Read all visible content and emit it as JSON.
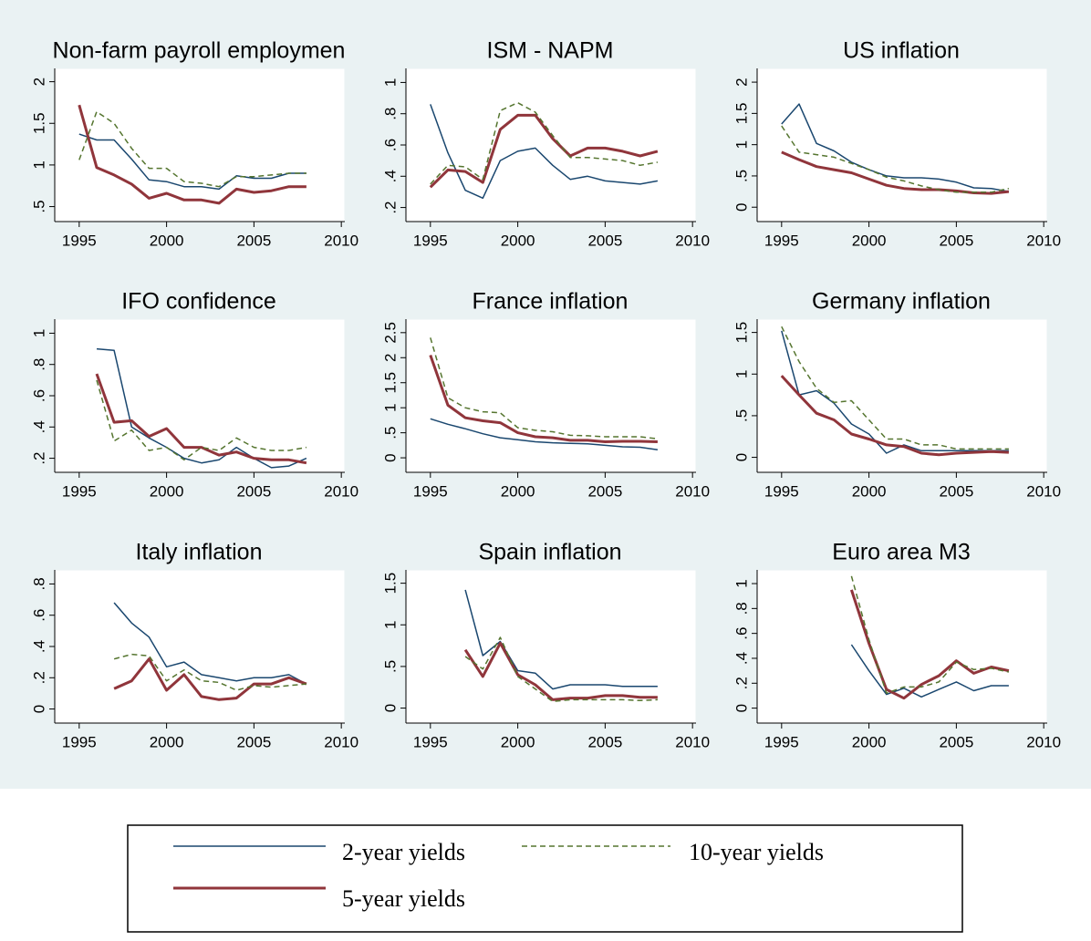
{
  "chart_data": [
    {
      "type": "line",
      "title": "Non-farm payroll employmen",
      "x": [
        1995,
        1996,
        1997,
        1998,
        1999,
        2000,
        2001,
        2002,
        2003,
        2004,
        2005,
        2006,
        2007,
        2008
      ],
      "xlim": [
        1993.6,
        2010.2
      ],
      "xticks": [
        1995,
        2000,
        2005,
        2010
      ],
      "ylim": [
        0.32,
        2.16
      ],
      "yticks": [
        {
          "value": 0.5,
          "label": ".5"
        },
        1,
        1.5,
        2
      ],
      "series": [
        {
          "name": "2-year yields",
          "color": "#1a476f",
          "values": [
            1.37,
            1.3,
            1.3,
            1.07,
            0.82,
            0.8,
            0.74,
            0.74,
            0.71,
            0.87,
            0.84,
            0.84,
            0.9,
            0.9
          ]
        },
        {
          "name": "5-year yields",
          "color": "#90353b",
          "values": [
            1.72,
            0.97,
            0.88,
            0.77,
            0.6,
            0.66,
            0.58,
            0.58,
            0.54,
            0.71,
            0.67,
            0.69,
            0.74,
            0.74
          ]
        },
        {
          "name": "10-year yields",
          "color": "#55752f",
          "values": [
            1.06,
            1.64,
            1.5,
            1.2,
            0.96,
            0.96,
            0.8,
            0.78,
            0.74,
            0.86,
            0.86,
            0.88,
            0.9,
            0.9
          ]
        }
      ]
    },
    {
      "type": "line",
      "title": "ISM - NAPM",
      "x": [
        1995,
        1996,
        1997,
        1998,
        1999,
        2000,
        2001,
        2002,
        2003,
        2004,
        2005,
        2006,
        2007,
        2008
      ],
      "xlim": [
        1993.6,
        2010.2
      ],
      "xticks": [
        1995,
        2000,
        2005,
        2010
      ],
      "ylim": [
        0.11,
        1.09
      ],
      "yticks": [
        {
          "value": 0.2,
          "label": ".2"
        },
        {
          "value": 0.4,
          "label": ".4"
        },
        {
          "value": 0.6,
          "label": ".6"
        },
        {
          "value": 0.8,
          "label": ".8"
        },
        1
      ],
      "series": [
        {
          "color": "#1a476f",
          "values": [
            0.86,
            0.55,
            0.31,
            0.26,
            0.5,
            0.56,
            0.58,
            0.47,
            0.38,
            0.4,
            0.37,
            0.36,
            0.35,
            0.37
          ]
        },
        {
          "color": "#90353b",
          "values": [
            0.33,
            0.44,
            0.43,
            0.36,
            0.7,
            0.79,
            0.79,
            0.64,
            0.53,
            0.58,
            0.58,
            0.56,
            0.53,
            0.56
          ]
        },
        {
          "color": "#55752f",
          "values": [
            0.35,
            0.47,
            0.46,
            0.38,
            0.82,
            0.87,
            0.81,
            0.66,
            0.52,
            0.52,
            0.51,
            0.5,
            0.47,
            0.49
          ]
        }
      ]
    },
    {
      "type": "line",
      "title": "US inflation",
      "x": [
        1995,
        1996,
        1997,
        1998,
        1999,
        2000,
        2001,
        2002,
        2003,
        2004,
        2005,
        2006,
        2007,
        2008
      ],
      "xlim": [
        1993.6,
        2010.2
      ],
      "xticks": [
        1995,
        2000,
        2005,
        2010
      ],
      "ylim": [
        -0.23,
        2.22
      ],
      "yticks": [
        0,
        {
          "value": 0.5,
          "label": ".5"
        },
        1,
        1.5,
        2
      ],
      "series": [
        {
          "color": "#1a476f",
          "values": [
            1.33,
            1.65,
            1.02,
            0.9,
            0.72,
            0.6,
            0.5,
            0.47,
            0.47,
            0.45,
            0.4,
            0.31,
            0.3,
            0.25
          ]
        },
        {
          "color": "#90353b",
          "values": [
            0.88,
            0.76,
            0.65,
            0.6,
            0.55,
            0.45,
            0.35,
            0.3,
            0.28,
            0.28,
            0.26,
            0.23,
            0.22,
            0.25
          ]
        },
        {
          "color": "#55752f",
          "values": [
            1.3,
            0.88,
            0.84,
            0.8,
            0.7,
            0.6,
            0.48,
            0.42,
            0.34,
            0.28,
            0.24,
            0.24,
            0.24,
            0.3
          ]
        }
      ]
    },
    {
      "type": "line",
      "title": "IFO confidence",
      "x": [
        1995,
        1996,
        1997,
        1998,
        1999,
        2000,
        2001,
        2002,
        2003,
        2004,
        2005,
        2006,
        2007,
        2008
      ],
      "xlim": [
        1993.6,
        2010.2
      ],
      "xticks": [
        1995,
        2000,
        2005,
        2010
      ],
      "ylim": [
        0.11,
        1.09
      ],
      "yticks": [
        {
          "value": 0.2,
          "label": ".2"
        },
        {
          "value": 0.4,
          "label": ".4"
        },
        {
          "value": 0.6,
          "label": ".6"
        },
        {
          "value": 0.8,
          "label": ".8"
        },
        1
      ],
      "series": [
        {
          "color": "#1a476f",
          "values": [
            null,
            0.9,
            0.89,
            0.4,
            0.33,
            0.27,
            0.2,
            0.17,
            0.19,
            0.27,
            0.2,
            0.14,
            0.15,
            0.2
          ]
        },
        {
          "color": "#90353b",
          "values": [
            null,
            0.74,
            0.43,
            0.44,
            0.34,
            0.39,
            0.27,
            0.27,
            0.22,
            0.24,
            0.2,
            0.19,
            0.19,
            0.17
          ]
        },
        {
          "color": "#55752f",
          "values": [
            null,
            0.7,
            0.31,
            0.38,
            0.25,
            0.27,
            0.19,
            0.27,
            0.25,
            0.33,
            0.27,
            0.25,
            0.25,
            0.27
          ]
        }
      ]
    },
    {
      "type": "line",
      "title": "France inflation",
      "x": [
        1995,
        1996,
        1997,
        1998,
        1999,
        2000,
        2001,
        2002,
        2003,
        2004,
        2005,
        2006,
        2007,
        2008
      ],
      "xlim": [
        1993.6,
        2010.2
      ],
      "xticks": [
        1995,
        2000,
        2005,
        2010
      ],
      "ylim": [
        -0.29,
        2.77
      ],
      "yticks": [
        0,
        {
          "value": 0.5,
          "label": ".5"
        },
        1,
        1.5,
        2,
        2.5
      ],
      "series": [
        {
          "color": "#1a476f",
          "values": [
            0.78,
            0.67,
            0.58,
            0.48,
            0.4,
            0.36,
            0.32,
            0.3,
            0.29,
            0.28,
            0.25,
            0.22,
            0.21,
            0.16
          ]
        },
        {
          "color": "#90353b",
          "values": [
            2.05,
            1.05,
            0.8,
            0.74,
            0.7,
            0.5,
            0.42,
            0.4,
            0.35,
            0.35,
            0.32,
            0.33,
            0.33,
            0.32
          ]
        },
        {
          "color": "#55752f",
          "values": [
            2.4,
            1.2,
            1.0,
            0.92,
            0.9,
            0.6,
            0.55,
            0.52,
            0.45,
            0.44,
            0.42,
            0.42,
            0.42,
            0.38
          ]
        }
      ]
    },
    {
      "type": "line",
      "title": "Germany inflation",
      "x": [
        1995,
        1996,
        1997,
        1998,
        1999,
        2000,
        2001,
        2002,
        2003,
        2004,
        2005,
        2006,
        2007,
        2008
      ],
      "xlim": [
        1993.6,
        2010.2
      ],
      "xticks": [
        1995,
        2000,
        2005,
        2010
      ],
      "ylim": [
        -0.18,
        1.66
      ],
      "yticks": [
        0,
        {
          "value": 0.5,
          "label": ".5"
        },
        1,
        1.5
      ],
      "series": [
        {
          "color": "#1a476f",
          "values": [
            1.52,
            0.75,
            0.8,
            0.65,
            0.4,
            0.28,
            0.05,
            0.15,
            0.08,
            0.08,
            0.08,
            0.08,
            0.08,
            0.08
          ]
        },
        {
          "color": "#90353b",
          "values": [
            0.98,
            0.75,
            0.53,
            0.45,
            0.28,
            0.22,
            0.15,
            0.13,
            0.05,
            0.03,
            0.05,
            0.06,
            0.07,
            0.06
          ]
        },
        {
          "color": "#55752f",
          "values": [
            1.57,
            1.15,
            0.83,
            0.66,
            0.68,
            0.45,
            0.22,
            0.22,
            0.15,
            0.15,
            0.1,
            0.1,
            0.1,
            0.1
          ]
        }
      ]
    },
    {
      "type": "line",
      "title": "Italy inflation",
      "x": [
        1995,
        1996,
        1997,
        1998,
        1999,
        2000,
        2001,
        2002,
        2003,
        2004,
        2005,
        2006,
        2007,
        2008
      ],
      "xlim": [
        1993.6,
        2010.2
      ],
      "xticks": [
        1995,
        2000,
        2005,
        2010
      ],
      "ylim": [
        -0.09,
        0.89
      ],
      "yticks": [
        0,
        {
          "value": 0.2,
          "label": ".2"
        },
        {
          "value": 0.4,
          "label": ".4"
        },
        {
          "value": 0.6,
          "label": ".6"
        },
        {
          "value": 0.8,
          "label": ".8"
        }
      ],
      "series": [
        {
          "color": "#1a476f",
          "values": [
            null,
            null,
            0.68,
            0.55,
            0.46,
            0.27,
            0.3,
            0.22,
            0.2,
            0.18,
            0.2,
            0.2,
            0.22,
            0.16
          ]
        },
        {
          "color": "#90353b",
          "values": [
            null,
            null,
            0.13,
            0.18,
            0.32,
            0.12,
            0.22,
            0.08,
            0.06,
            0.07,
            0.16,
            0.16,
            0.2,
            0.16
          ]
        },
        {
          "color": "#55752f",
          "values": [
            null,
            null,
            0.32,
            0.35,
            0.34,
            0.18,
            0.25,
            0.18,
            0.17,
            0.12,
            0.15,
            0.14,
            0.15,
            0.16
          ]
        }
      ]
    },
    {
      "type": "line",
      "title": "Spain inflation",
      "x": [
        1995,
        1996,
        1997,
        1998,
        1999,
        2000,
        2001,
        2002,
        2003,
        2004,
        2005,
        2006,
        2007,
        2008
      ],
      "xlim": [
        1993.6,
        2010.2
      ],
      "xticks": [
        1995,
        2000,
        2005,
        2010
      ],
      "ylim": [
        -0.18,
        1.66
      ],
      "yticks": [
        0,
        {
          "value": 0.5,
          "label": ".5"
        },
        1,
        1.5
      ],
      "series": [
        {
          "color": "#1a476f",
          "values": [
            null,
            null,
            1.42,
            0.63,
            0.8,
            0.45,
            0.42,
            0.23,
            0.28,
            0.28,
            0.28,
            0.26,
            0.26,
            0.26
          ]
        },
        {
          "color": "#90353b",
          "values": [
            null,
            null,
            0.7,
            0.38,
            0.78,
            0.4,
            0.28,
            0.1,
            0.12,
            0.12,
            0.15,
            0.15,
            0.13,
            0.13
          ]
        },
        {
          "color": "#55752f",
          "values": [
            null,
            null,
            0.62,
            0.47,
            0.85,
            0.38,
            0.23,
            0.08,
            0.1,
            0.1,
            0.1,
            0.1,
            0.09,
            0.1
          ]
        }
      ]
    },
    {
      "type": "line",
      "title": "Euro area M3",
      "x": [
        1995,
        1996,
        1997,
        1998,
        1999,
        2000,
        2001,
        2002,
        2003,
        2004,
        2005,
        2006,
        2007,
        2008
      ],
      "xlim": [
        1993.6,
        2010.2
      ],
      "xticks": [
        1995,
        2000,
        2005,
        2010
      ],
      "ylim": [
        -0.12,
        1.11
      ],
      "yticks": [
        0,
        {
          "value": 0.2,
          "label": ".2"
        },
        {
          "value": 0.4,
          "label": ".4"
        },
        {
          "value": 0.6,
          "label": ".6"
        },
        {
          "value": 0.8,
          "label": ".8"
        },
        1
      ],
      "series": [
        {
          "color": "#1a476f",
          "values": [
            null,
            null,
            null,
            null,
            0.51,
            0.3,
            0.11,
            0.16,
            0.09,
            0.15,
            0.21,
            0.14,
            0.18,
            0.18
          ]
        },
        {
          "color": "#90353b",
          "values": [
            null,
            null,
            null,
            null,
            0.95,
            0.52,
            0.15,
            0.08,
            0.19,
            0.26,
            0.38,
            0.28,
            0.33,
            0.3
          ]
        },
        {
          "color": "#55752f",
          "values": [
            null,
            null,
            null,
            null,
            1.06,
            0.55,
            0.12,
            0.17,
            0.17,
            0.21,
            0.37,
            0.31,
            0.32,
            0.29
          ]
        }
      ]
    }
  ]
}
